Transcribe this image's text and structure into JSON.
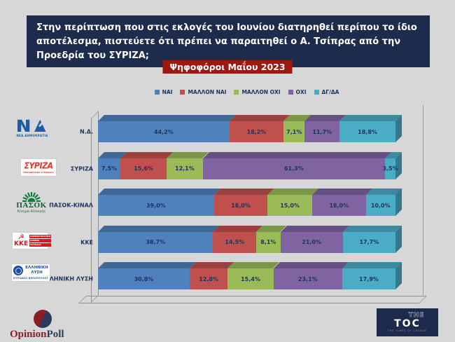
{
  "page": {
    "bg_color": "#d7d7d7"
  },
  "header": {
    "question": "Στην περίπτωση που στις εκλογές του Ιουνίου διατηρηθεί περίπου το ίδιο αποτέλεσμα, πιστεύετε ότι πρέπει να παραιτηθεί ο Α. Τσίπρας από την Προεδρία του ΣΥΡΙΖΑ;",
    "question_bg": "#1d2c4c",
    "badge_label": "Ψηφοφόροι Μαΐου 2023",
    "badge_bg": "#9e1812"
  },
  "chart_data": {
    "type": "bar",
    "variant": "horizontal-stacked-3d",
    "unit": "percent",
    "decimal_separator": ",",
    "xlim": [
      0,
      100
    ],
    "grid": false,
    "legend_position": "top",
    "categories": [
      "Ν.Δ.",
      "ΣΥΡΙΖΑ",
      "ΠΑΣΟΚ-ΚΙΝΑΛ",
      "ΚΚΕ",
      "ΕΛΛΗΝΙΚΗ ΛΥΣΗ"
    ],
    "series": [
      {
        "name": "ΝΑΙ",
        "color": "#4f81bd",
        "values": [
          44.2,
          7.5,
          39.0,
          38.7,
          30.8
        ]
      },
      {
        "name": "ΜΑΛΛΟΝ ΝΑΙ",
        "color": "#c0504d",
        "values": [
          18.2,
          15.6,
          18.0,
          14.5,
          12.8
        ]
      },
      {
        "name": "ΜΑΛΛΟΝ ΟΧΙ",
        "color": "#9bbb59",
        "values": [
          7.1,
          12.1,
          15.0,
          8.1,
          15.4
        ]
      },
      {
        "name": "ΟΧΙ",
        "color": "#8064a2",
        "values": [
          11.7,
          61.3,
          18.0,
          21.0,
          23.1
        ]
      },
      {
        "name": "ΔΓ/ΔΑ",
        "color": "#4bacc6",
        "values": [
          18.8,
          3.5,
          10.0,
          17.7,
          17.9
        ]
      }
    ]
  },
  "party_logos": [
    {
      "name": "ΝΕΑ ΔΗΜΟΚΡΑΤΙΑ",
      "monogram": "ΝΔ",
      "caption": "ΝΕΑ ΔΗΜΟΚΡΑΤΙΑ",
      "color": "#1a5dab"
    },
    {
      "name": "ΣΥΡΙΖΑ",
      "wordmark": "ΣΥΡΙΖΑ",
      "caption": "ΠΡΟΟΔΕΥΤΙΚΗ ΣΥΜΜΑΧΙΑ",
      "color": "#e0392e"
    },
    {
      "name": "ΠΑΣΟΚ",
      "wordmark": "ΠΑΣΟΚ",
      "caption": "Κίνημα Αλλαγής",
      "color": "#0e7a3c"
    },
    {
      "name": "ΚΚΕ",
      "wordmark": "ΚΚΕ",
      "caption_lines": [
        "ΚΟΜΜΟΥΝΙΣΤΙΚΟ",
        "ΚΟΜΜΑ",
        "ΕΛΛΑΔΑΣ"
      ],
      "color": "#d6191e"
    },
    {
      "name": "ΕΛΛΗΝΙΚΗ ΛΥΣΗ",
      "wordmark_lines": [
        "ΕΛΛΗΝΙΚΗ",
        "ΛΥΣΗ"
      ],
      "caption": "ΚΥΡΙΑΚΟΣ ΒΕΛΟΠΟΥΛΟΣ",
      "color": "#1d4c9f"
    }
  ],
  "footer": {
    "opinionpoll": {
      "word1": "Opinion",
      "word2": "Poll",
      "word1_color": "#8b1e25",
      "word2_color": "#2f3b55"
    },
    "thetoc": {
      "word1": "THE",
      "word2": "TOC",
      "tagline": "THE TIMES OF CHANGE",
      "bg": "#1d2a4b"
    }
  }
}
